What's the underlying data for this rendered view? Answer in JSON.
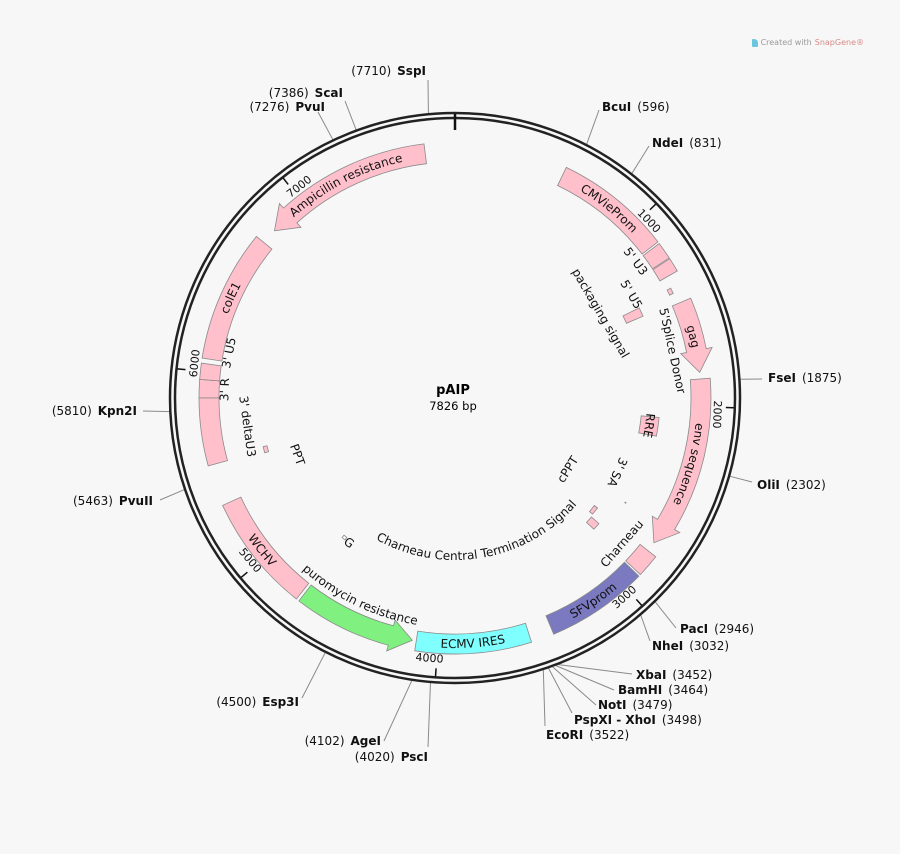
{
  "branding": {
    "created_with": "Created with",
    "brand": "SnapGene®"
  },
  "plasmid": {
    "name": "pAIP",
    "length_label": "7826 bp",
    "length_bp": 7826
  },
  "ticks": [
    1000,
    2000,
    3000,
    4000,
    5000,
    6000,
    7000
  ],
  "colors": {
    "feature_default": "#ffc0cb",
    "sfv": "#7b79c0",
    "ires": "#80ffff",
    "puro": "#80f080",
    "ring": "#222222"
  },
  "features": [
    {
      "name": "CMVieProm",
      "start": 560,
      "end": 1140,
      "direction": "none",
      "color": "#ffc0cb"
    },
    {
      "name": "5' U3",
      "start": 1150,
      "end": 1235,
      "direction": "none",
      "color": "#ffc0cb"
    },
    {
      "name": "5' U5",
      "start": 1240,
      "end": 1310,
      "direction": "none",
      "color": "#ffc0cb"
    },
    {
      "name": "5'Splice Donor",
      "start": 1370,
      "end": 1400,
      "direction": "none",
      "color": "#ffc0cb"
    },
    {
      "name": "gag",
      "start": 1457,
      "end": 1826,
      "direction": "forward",
      "color": "#ffc0cb"
    },
    {
      "name": "packaging signal",
      "start": 1390,
      "end": 1445,
      "direction": "none",
      "color": "#ffc0cb"
    },
    {
      "name": "env sequence",
      "start": 1860,
      "end": 2740,
      "direction": "forward",
      "color": "#ffc0cb"
    },
    {
      "name": "RRE",
      "start": 2075,
      "end": 2190,
      "direction": "none",
      "color": "#ffc0cb"
    },
    {
      "name": "Charneau",
      "start": 2790,
      "end": 2905,
      "direction": "none",
      "color": "#ffc0cb"
    },
    {
      "name": "SFVprom",
      "start": 2915,
      "end": 3420,
      "direction": "none",
      "color": "#7b79c0"
    },
    {
      "name": "cPPT",
      "start": 2775,
      "end": 2830,
      "direction": "none",
      "color": "#ffc0cb"
    },
    {
      "name": "3' SA",
      "start": 2640,
      "end": 2645,
      "direction": "none",
      "color": "#999999"
    },
    {
      "name": "Charneau Central Termination Signal",
      "start": 2850,
      "end": 2900,
      "direction": "none",
      "color": "#ffc0cb"
    },
    {
      "name": "ECMV IRES",
      "start": 3535,
      "end": 4110,
      "direction": "none",
      "color": "#80ffff"
    },
    {
      "name": "puromycin resistance",
      "start": 4130,
      "end": 4730,
      "direction": "reverse",
      "color": "#80f080"
    },
    {
      "name": "G",
      "start": 4735,
      "end": 4760,
      "direction": "none",
      "color": "#ffffff"
    },
    {
      "name": "WCHV",
      "start": 4745,
      "end": 5330,
      "direction": "none",
      "color": "#ffc0cb"
    },
    {
      "name": "3' deltaU3",
      "start": 5535,
      "end": 5870,
      "direction": "none",
      "color": "#ffc0cb"
    },
    {
      "name": "3' R",
      "start": 5870,
      "end": 5960,
      "direction": "none",
      "color": "#ffc0cb"
    },
    {
      "name": "3' U5",
      "start": 5960,
      "end": 6040,
      "direction": "none",
      "color": "#ffc0cb"
    },
    {
      "name": "PPT",
      "start": 5520,
      "end": 5560,
      "direction": "none",
      "color": "#ffc0cb"
    },
    {
      "name": "colE1",
      "start": 6065,
      "end": 6720,
      "direction": "none",
      "color": "#ffc0cb"
    },
    {
      "name": "Ampicillin resistance",
      "start": 6800,
      "end": 7675,
      "direction": "reverse",
      "color": "#ffc0cb"
    }
  ],
  "enzymes": [
    {
      "name": "SspI",
      "pos": 7710
    },
    {
      "name": "ScaI",
      "pos": 7386
    },
    {
      "name": "PvuI",
      "pos": 7276
    },
    {
      "name": "BcuI",
      "pos": 596
    },
    {
      "name": "NdeI",
      "pos": 831
    },
    {
      "name": "FseI",
      "pos": 1875
    },
    {
      "name": "OliI",
      "pos": 2302
    },
    {
      "name": "PacI",
      "pos": 2946
    },
    {
      "name": "NheI",
      "pos": 3032
    },
    {
      "name": "XbaI",
      "pos": 3452
    },
    {
      "name": "BamHI",
      "pos": 3464
    },
    {
      "name": "NotI",
      "pos": 3479
    },
    {
      "name": "PspXI - XhoI",
      "pos": 3498
    },
    {
      "name": "EcoRI",
      "pos": 3522
    },
    {
      "name": "AgeI",
      "pos": 4102
    },
    {
      "name": "PscI",
      "pos": 4020
    },
    {
      "name": "Esp3I",
      "pos": 4500
    },
    {
      "name": "PvuII",
      "pos": 5463
    },
    {
      "name": "Kpn2I",
      "pos": 5810
    }
  ]
}
